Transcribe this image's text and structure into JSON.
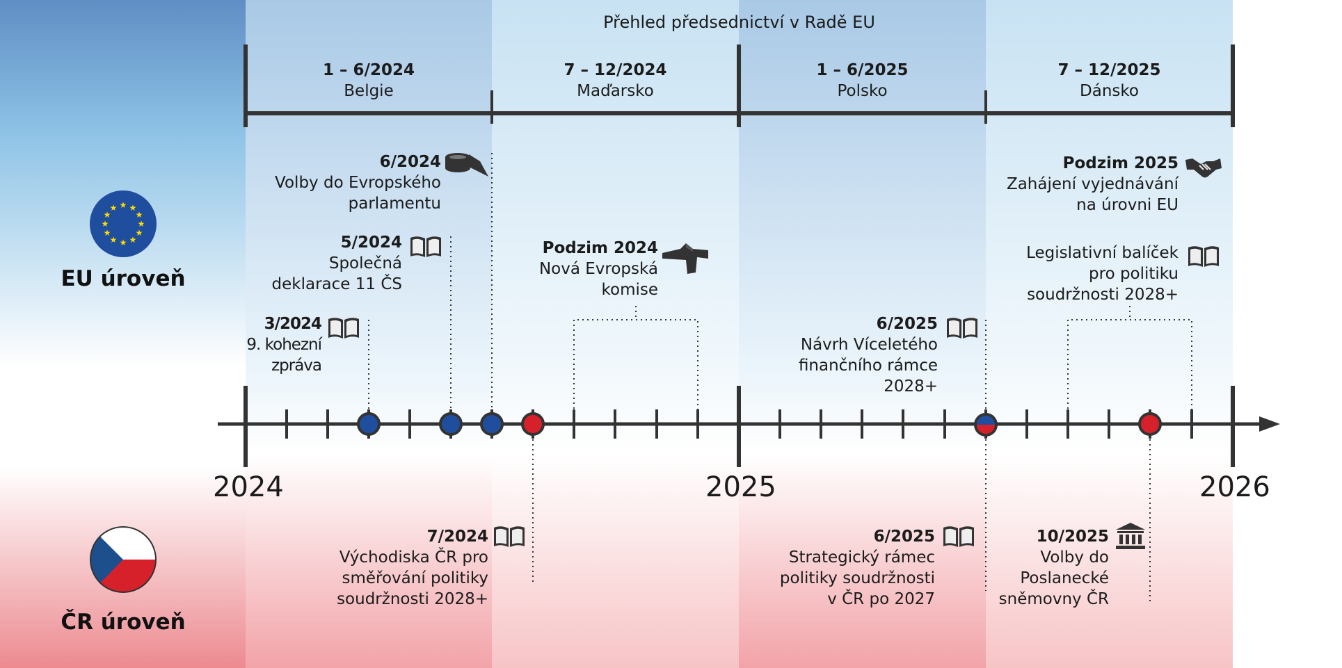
{
  "title": "Přehled předsednictví v Radě EU",
  "presidencies": [
    {
      "period": "1 – 6/2024",
      "country": "Belgie"
    },
    {
      "period": "7 – 12/2024",
      "country": "Maďarsko"
    },
    {
      "period": "1 – 6/2025",
      "country": "Polsko"
    },
    {
      "period": "7 – 12/2025",
      "country": "Dánsko"
    }
  ],
  "years": [
    "2024",
    "2025",
    "2026"
  ],
  "levels": {
    "eu": "EU úroveň",
    "cr": "ČR úroveň"
  },
  "eu_events": [
    {
      "date": "6/2024",
      "lines": [
        "Volby do Evropského",
        "parlamentu"
      ],
      "icon": "ballot-box-icon"
    },
    {
      "date": "5/2024",
      "lines": [
        "Společná",
        "deklarace 11 ČS"
      ],
      "icon": "book-icon"
    },
    {
      "date": "3/2024",
      "lines": [
        "9. kohezní",
        "zpráva"
      ],
      "icon": "book-icon"
    },
    {
      "date": "Podzim 2024",
      "lines": [
        "Nová Evropská",
        "komise"
      ],
      "icon": "berlaymont-building-icon"
    },
    {
      "date": "6/2025",
      "lines": [
        "Návrh Víceletého",
        "finančního rámce",
        "2028+"
      ],
      "icon": "book-icon"
    },
    {
      "date": "Podzim 2025",
      "lines": [
        "Zahájení vyjednávání",
        "na úrovni EU"
      ],
      "icon": "handshake-icon"
    },
    {
      "date": "",
      "lines": [
        "Legislativní balíček",
        "pro politiku",
        "soudržnosti 2028+"
      ],
      "icon": "book-icon"
    }
  ],
  "cr_events": [
    {
      "date": "7/2024",
      "lines": [
        "Východiska ČR pro",
        "směřování politiky",
        "soudržnosti 2028+"
      ],
      "icon": "book-icon"
    },
    {
      "date": "6/2025",
      "lines": [
        "Strategický rámec",
        "politiky soudržnosti",
        "v ČR po 2027"
      ],
      "icon": "book-icon"
    },
    {
      "date": "10/2025",
      "lines": [
        "Volby do",
        "Poslanecké",
        "sněmovny ČR"
      ],
      "icon": "parliament-building-icon"
    }
  ],
  "colors": {
    "eu_blue": "#1f4e9e",
    "cz_red": "#d6202a",
    "line": "#333333"
  }
}
